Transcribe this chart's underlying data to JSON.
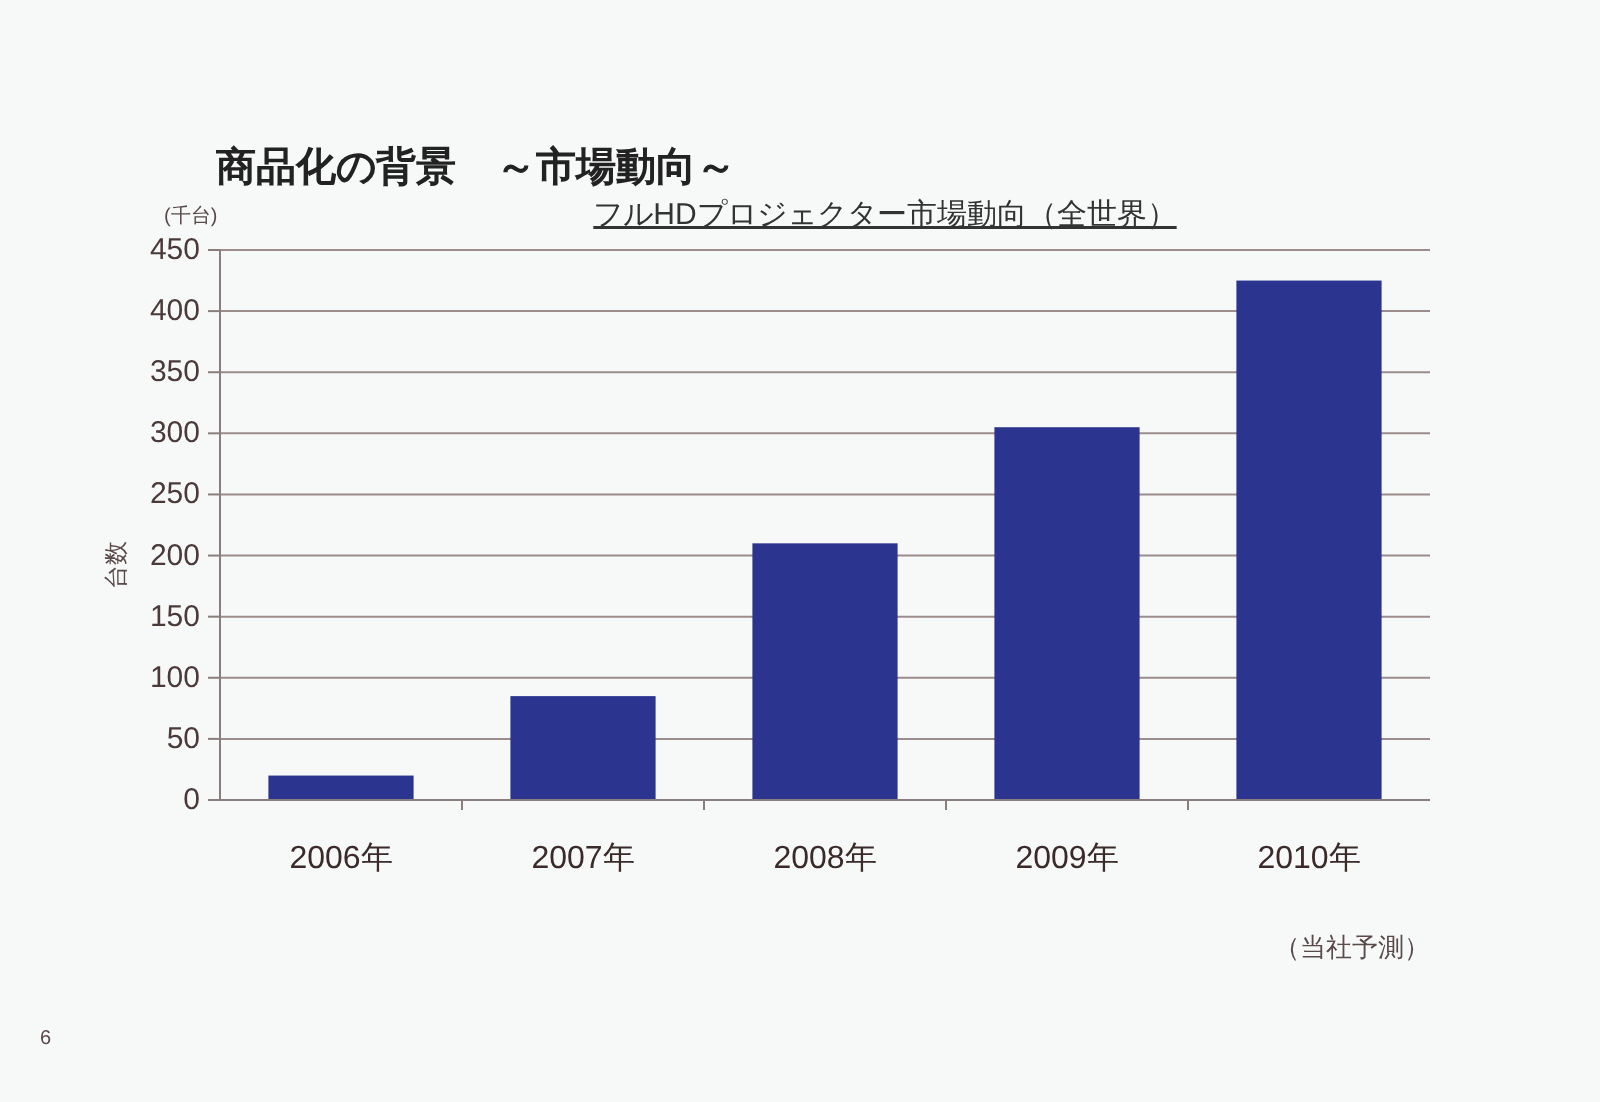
{
  "chart_data": {
    "type": "bar",
    "title": "商品化の背景　～市場動向～",
    "subtitle": "フルHDプロジェクター市場動向（全世界）",
    "ylabel": "台数",
    "annotations": [
      "(千台)",
      "（当社予測）",
      "6"
    ],
    "categories": [
      "2006年",
      "2007年",
      "2008年",
      "2009年",
      "2010年"
    ],
    "values": [
      20,
      85,
      210,
      305,
      425
    ],
    "color": "#2b3590",
    "ylim": [
      0,
      450
    ],
    "yticks": [
      0,
      50,
      100,
      150,
      200,
      250,
      300,
      350,
      400,
      450
    ],
    "grid": "y"
  }
}
